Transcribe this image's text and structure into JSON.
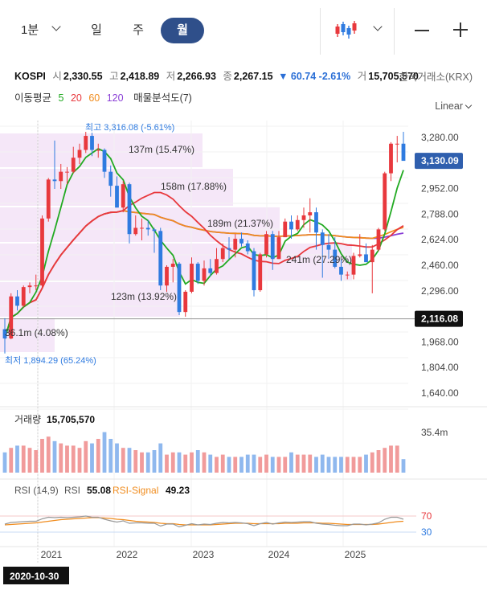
{
  "toolbar": {
    "tabs": [
      {
        "label": "1분",
        "active": false
      },
      {
        "label": "일",
        "active": false
      },
      {
        "label": "주",
        "active": false
      },
      {
        "label": "월",
        "active": true
      }
    ],
    "chart_type_icon": "candlestick-icon",
    "zoom_out_icon": "minus-icon",
    "zoom_in_icon": "plus-icon"
  },
  "quote": {
    "name": "KOSPI",
    "open_label": "시",
    "open": "2,330.55",
    "high_label": "고",
    "high": "2,418.89",
    "low_label": "저",
    "low": "2,266.93",
    "close_label": "종",
    "close": "2,267.15",
    "change": "▼ 60.74 -2.61%",
    "volume_label": "거",
    "volume": "15,705,570",
    "exchange": "한국거래소(KRX)"
  },
  "indicators": {
    "ma_label": "이동평균",
    "ma_periods": [
      "5",
      "20",
      "60",
      "120"
    ],
    "ma_colors": [
      "#22aa22",
      "#e8383d",
      "#f08c1e",
      "#8a3fd6"
    ],
    "volume_profile": "매물분석도(7)"
  },
  "scale_mode": "Linear",
  "colors": {
    "up": "#e8383d",
    "down": "#2f7be0",
    "accent": "#2f4f8a"
  },
  "chart_data": {
    "type": "candlestick",
    "interval": "monthly",
    "price_axis": {
      "ticks": [
        "3,280.00",
        "2,952.00",
        "2,788.00",
        "2,624.00",
        "2,460.00",
        "2,296.00",
        "1,968.00",
        "1,804.00",
        "1,640.00"
      ],
      "range": [
        1560,
        3440
      ]
    },
    "current_price_tag": "3,130.09",
    "crosshair_price_tag": "2,116.08",
    "high_marker": "최고 3,316.08 (-5.61%)",
    "low_marker": "최저 1,894.29 (65.24%)",
    "x_axis_labels": [
      "2021",
      "2022",
      "2023",
      "2024",
      "2025"
    ],
    "crosshair_date": "2020-10-30",
    "volume_profile_labels": [
      "137m (15.47%)",
      "158m (17.88%)",
      "189m (21.37%)",
      "241m (27.29%)",
      "123m (13.92%)",
      "36.1m (4.08%)"
    ],
    "candles": [
      {
        "o": 2050,
        "h": 2120,
        "l": 1894,
        "c": 1990
      },
      {
        "o": 1990,
        "h": 2280,
        "l": 1985,
        "c": 2260
      },
      {
        "o": 2260,
        "h": 2300,
        "l": 2170,
        "c": 2200
      },
      {
        "o": 2200,
        "h": 2330,
        "l": 2190,
        "c": 2320
      },
      {
        "o": 2320,
        "h": 2350,
        "l": 2280,
        "c": 2330
      },
      {
        "o": 2330,
        "h": 2400,
        "l": 2300,
        "c": 2330
      },
      {
        "o": 2330,
        "h": 2780,
        "l": 2320,
        "c": 2760
      },
      {
        "o": 2760,
        "h": 3020,
        "l": 2740,
        "c": 3010
      },
      {
        "o": 3010,
        "h": 3260,
        "l": 2950,
        "c": 3000
      },
      {
        "o": 3000,
        "h": 3110,
        "l": 2950,
        "c": 3060
      },
      {
        "o": 3060,
        "h": 3090,
        "l": 2980,
        "c": 3060
      },
      {
        "o": 3060,
        "h": 3220,
        "l": 3050,
        "c": 3150
      },
      {
        "o": 3150,
        "h": 3240,
        "l": 3110,
        "c": 3200
      },
      {
        "o": 3200,
        "h": 3316,
        "l": 3180,
        "c": 3290
      },
      {
        "o": 3290,
        "h": 3310,
        "l": 3160,
        "c": 3200
      },
      {
        "o": 3200,
        "h": 3240,
        "l": 3150,
        "c": 3200
      },
      {
        "o": 3200,
        "h": 3210,
        "l": 3020,
        "c": 3060
      },
      {
        "o": 3060,
        "h": 3100,
        "l": 2900,
        "c": 2970
      },
      {
        "o": 2970,
        "h": 3030,
        "l": 2830,
        "c": 2830
      },
      {
        "o": 2830,
        "h": 3000,
        "l": 2800,
        "c": 2980
      },
      {
        "o": 2980,
        "h": 2990,
        "l": 2600,
        "c": 2660
      },
      {
        "o": 2660,
        "h": 2780,
        "l": 2650,
        "c": 2700
      },
      {
        "o": 2700,
        "h": 2760,
        "l": 2620,
        "c": 2700
      },
      {
        "o": 2700,
        "h": 2750,
        "l": 2650,
        "c": 2690
      },
      {
        "o": 2690,
        "h": 2700,
        "l": 2540,
        "c": 2680
      },
      {
        "o": 2680,
        "h": 2700,
        "l": 2300,
        "c": 2330
      },
      {
        "o": 2330,
        "h": 2460,
        "l": 2290,
        "c": 2450
      },
      {
        "o": 2450,
        "h": 2500,
        "l": 2350,
        "c": 2470
      },
      {
        "o": 2470,
        "h": 2480,
        "l": 2140,
        "c": 2160
      },
      {
        "o": 2160,
        "h": 2300,
        "l": 2130,
        "c": 2290
      },
      {
        "o": 2290,
        "h": 2510,
        "l": 2280,
        "c": 2470
      },
      {
        "o": 2470,
        "h": 2480,
        "l": 2340,
        "c": 2360
      },
      {
        "o": 2360,
        "h": 2490,
        "l": 2330,
        "c": 2440
      },
      {
        "o": 2440,
        "h": 2500,
        "l": 2390,
        "c": 2410
      },
      {
        "o": 2410,
        "h": 2570,
        "l": 2400,
        "c": 2500
      },
      {
        "o": 2500,
        "h": 2600,
        "l": 2480,
        "c": 2570
      },
      {
        "o": 2570,
        "h": 2640,
        "l": 2500,
        "c": 2560
      },
      {
        "o": 2560,
        "h": 2660,
        "l": 2510,
        "c": 2630
      },
      {
        "o": 2630,
        "h": 2670,
        "l": 2580,
        "c": 2600
      },
      {
        "o": 2600,
        "h": 2620,
        "l": 2530,
        "c": 2550
      },
      {
        "o": 2550,
        "h": 2570,
        "l": 2260,
        "c": 2300
      },
      {
        "o": 2300,
        "h": 2540,
        "l": 2290,
        "c": 2530
      },
      {
        "o": 2530,
        "h": 2680,
        "l": 2510,
        "c": 2660
      },
      {
        "o": 2660,
        "h": 2680,
        "l": 2430,
        "c": 2500
      },
      {
        "o": 2500,
        "h": 2680,
        "l": 2500,
        "c": 2640
      },
      {
        "o": 2640,
        "h": 2760,
        "l": 2640,
        "c": 2740
      },
      {
        "o": 2740,
        "h": 2780,
        "l": 2630,
        "c": 2690
      },
      {
        "o": 2690,
        "h": 2780,
        "l": 2680,
        "c": 2750
      },
      {
        "o": 2750,
        "h": 2830,
        "l": 2700,
        "c": 2780
      },
      {
        "o": 2780,
        "h": 2890,
        "l": 2670,
        "c": 2800
      },
      {
        "o": 2800,
        "h": 2830,
        "l": 2560,
        "c": 2670
      },
      {
        "o": 2670,
        "h": 2690,
        "l": 2380,
        "c": 2590
      },
      {
        "o": 2590,
        "h": 2660,
        "l": 2500,
        "c": 2560
      },
      {
        "o": 2560,
        "h": 2640,
        "l": 2440,
        "c": 2450
      },
      {
        "o": 2450,
        "h": 2500,
        "l": 2360,
        "c": 2400
      },
      {
        "o": 2400,
        "h": 2420,
        "l": 2370,
        "c": 2400
      },
      {
        "o": 2400,
        "h": 2540,
        "l": 2370,
        "c": 2520
      },
      {
        "o": 2520,
        "h": 2660,
        "l": 2510,
        "c": 2530
      },
      {
        "o": 2530,
        "h": 2600,
        "l": 2480,
        "c": 2480
      },
      {
        "o": 2480,
        "h": 2590,
        "l": 2280,
        "c": 2560
      },
      {
        "o": 2560,
        "h": 2700,
        "l": 2550,
        "c": 2690
      },
      {
        "o": 2690,
        "h": 3060,
        "l": 2680,
        "c": 3050
      },
      {
        "o": 3050,
        "h": 3250,
        "l": 3000,
        "c": 3240
      },
      {
        "o": 3240,
        "h": 3290,
        "l": 3120,
        "c": 3240
      },
      {
        "o": 3240,
        "h": 3316,
        "l": 3140,
        "c": 3130
      }
    ],
    "volume_label": "거래량",
    "volume_value": "15,705,570",
    "volume_axis_tick": "35.4m",
    "volume": [
      18,
      22,
      24,
      24,
      22,
      20,
      30,
      32,
      28,
      26,
      24,
      24,
      22,
      28,
      26,
      30,
      36,
      30,
      26,
      22,
      22,
      20,
      18,
      18,
      20,
      26,
      16,
      18,
      18,
      16,
      18,
      20,
      18,
      16,
      14,
      16,
      14,
      14,
      14,
      16,
      16,
      14,
      16,
      14,
      14,
      14,
      18,
      16,
      16,
      16,
      14,
      16,
      14,
      14,
      14,
      14,
      14,
      14,
      16,
      18,
      20,
      22,
      24,
      24,
      12
    ],
    "rsi_label": "RSI (14,9)",
    "rsi_name": "RSI",
    "rsi_value": "55.08",
    "rsi_signal_name": "RSI-Signal",
    "rsi_signal_value": "49.23",
    "rsi_axis_ticks": [
      "70",
      "30"
    ],
    "rsi": [
      50,
      54,
      55,
      56,
      57,
      57,
      63,
      67,
      66,
      67,
      66,
      67,
      68,
      70,
      67,
      67,
      62,
      58,
      55,
      58,
      52,
      53,
      53,
      52,
      52,
      45,
      50,
      50,
      43,
      47,
      51,
      48,
      50,
      49,
      52,
      54,
      53,
      54,
      53,
      51,
      46,
      51,
      54,
      50,
      53,
      55,
      54,
      55,
      56,
      56,
      52,
      50,
      49,
      47,
      46,
      46,
      50,
      50,
      48,
      50,
      53,
      62,
      67,
      67,
      62
    ],
    "rsi_signal": [
      48,
      49,
      50,
      51,
      52,
      53,
      55,
      57,
      59,
      61,
      62,
      63,
      64,
      65,
      66,
      66,
      65,
      64,
      62,
      61,
      59,
      57,
      56,
      55,
      54,
      52,
      51,
      51,
      49,
      48,
      48,
      48,
      48,
      48,
      49,
      50,
      51,
      52,
      52,
      52,
      51,
      51,
      51,
      51,
      51,
      52,
      52,
      52,
      53,
      53,
      53,
      52,
      52,
      51,
      50,
      49,
      49,
      49,
      49,
      49,
      50,
      52,
      54,
      56,
      57
    ]
  }
}
